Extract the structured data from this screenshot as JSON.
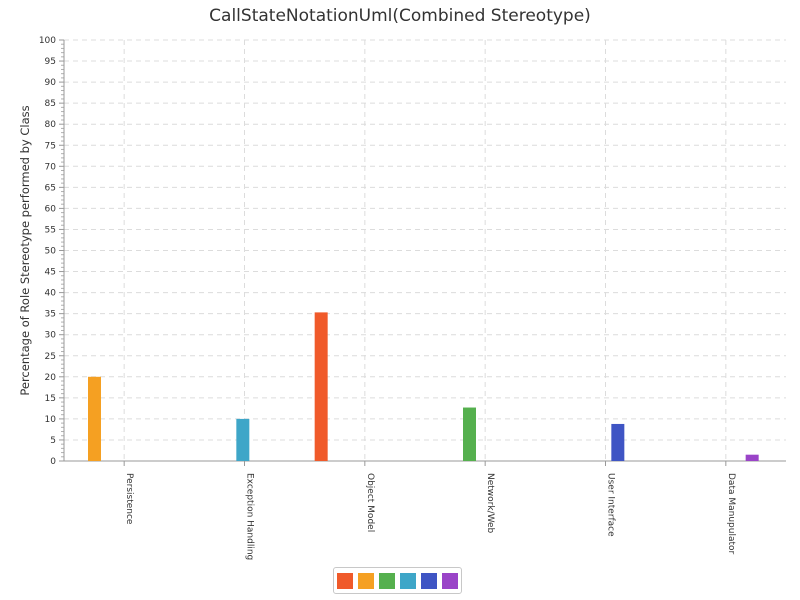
{
  "chart_data": {
    "type": "bar",
    "title": "CallStateNotationUml(Combined Stereotype)",
    "xlabel": "",
    "ylabel": "Percentage of Role Stereotype performed by Class",
    "ylim": [
      0,
      100
    ],
    "ytick_step": 5,
    "grid": true,
    "legend_position": "bottom",
    "categories": [
      "Persistence",
      "Exception Handling",
      "Object Model",
      "Network/Web",
      "User Interface",
      "Data Manupulator"
    ],
    "series": [
      {
        "color": "#f05a2a",
        "values": [
          0,
          0,
          35.3,
          0,
          0,
          0
        ]
      },
      {
        "color": "#f5a022",
        "values": [
          20.0,
          0,
          0,
          0,
          0,
          0
        ]
      },
      {
        "color": "#55b04e",
        "values": [
          0,
          0,
          0,
          12.7,
          0,
          0
        ]
      },
      {
        "color": "#3ea6c8",
        "values": [
          0,
          10.0,
          0,
          0,
          0,
          0
        ]
      },
      {
        "color": "#3f55c4",
        "values": [
          0,
          0,
          0,
          0,
          8.8,
          0
        ]
      },
      {
        "color": "#9a44c8",
        "values": [
          0,
          0,
          0,
          0,
          0,
          1.5
        ]
      }
    ]
  }
}
